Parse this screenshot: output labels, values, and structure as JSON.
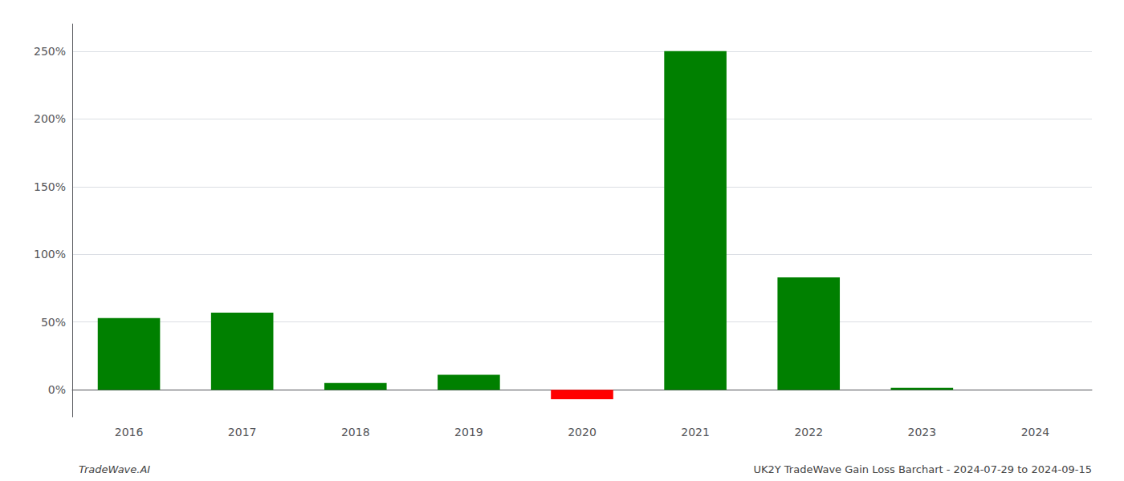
{
  "chart_data": {
    "type": "bar",
    "categories": [
      "2016",
      "2017",
      "2018",
      "2019",
      "2020",
      "2021",
      "2022",
      "2023",
      "2024"
    ],
    "values": [
      53,
      57,
      5,
      11,
      -7,
      250,
      83,
      1.5,
      0.0
    ],
    "colors": [
      "#008000",
      "#008000",
      "#008000",
      "#008000",
      "#ff0000",
      "#008000",
      "#008000",
      "#008000",
      "#008000"
    ],
    "ylim": [
      -20,
      270
    ],
    "yticks": [
      {
        "value": 0,
        "label": "0%"
      },
      {
        "value": 50,
        "label": "50%"
      },
      {
        "value": 100,
        "label": "100%"
      },
      {
        "value": 150,
        "label": "150%"
      },
      {
        "value": 200,
        "label": "200%"
      },
      {
        "value": 250,
        "label": "250%"
      }
    ],
    "grid": true,
    "annotations": [
      "TradeWave.AI",
      "UK2Y TradeWave Gain Loss Barchart - 2024-07-29 to 2024-09-15"
    ]
  }
}
